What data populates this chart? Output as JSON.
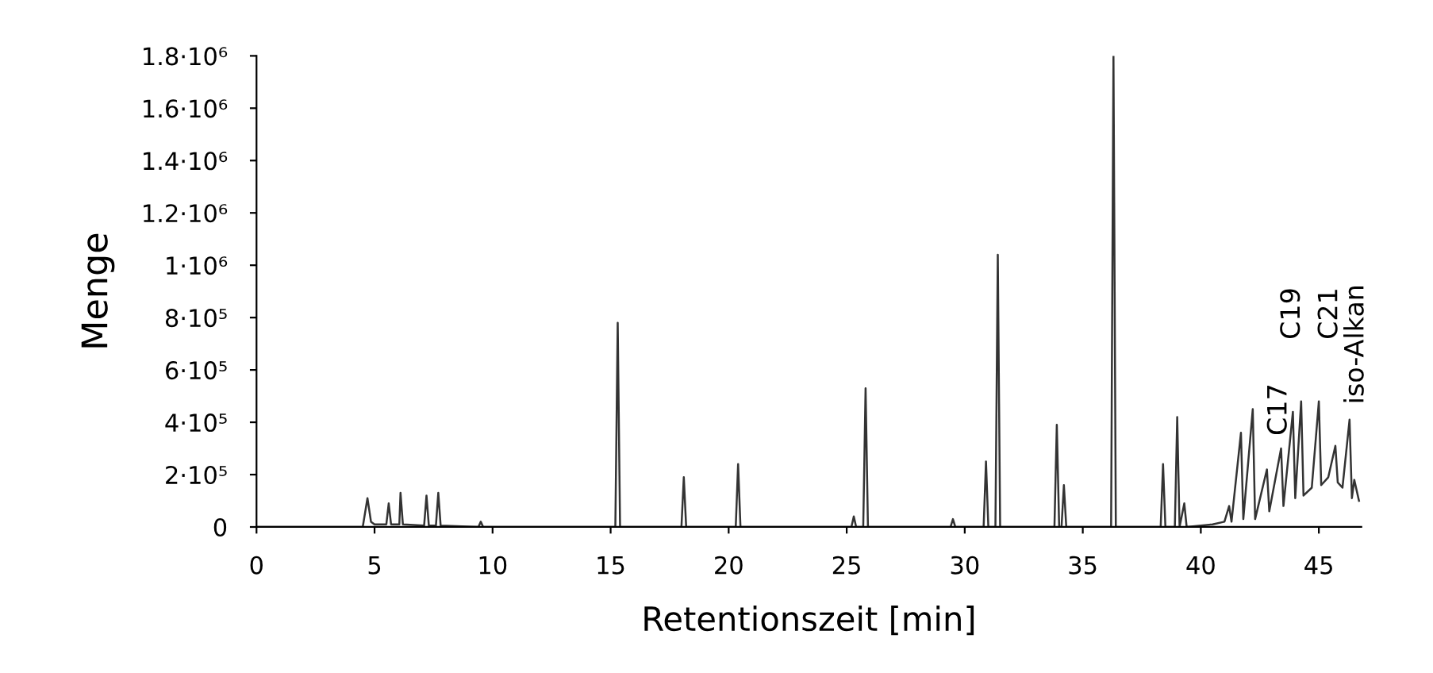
{
  "chart_data": {
    "type": "line",
    "xlabel": "Retentionszeit [min]",
    "ylabel": "Menge",
    "x": [
      0,
      4.5,
      4.7,
      4.85,
      5.0,
      5.5,
      5.6,
      5.7,
      6.05,
      6.1,
      6.2,
      7.1,
      7.2,
      7.3,
      7.6,
      7.7,
      7.8,
      9.4,
      9.5,
      9.6,
      15.2,
      15.3,
      15.4,
      18.0,
      18.1,
      18.2,
      20.3,
      20.4,
      20.5,
      25.2,
      25.3,
      25.4,
      25.7,
      25.8,
      25.9,
      29.4,
      29.5,
      29.6,
      30.8,
      30.9,
      31.0,
      31.3,
      31.4,
      31.5,
      33.8,
      33.9,
      34.0,
      34.1,
      34.2,
      34.3,
      36.2,
      36.3,
      36.4,
      38.3,
      38.4,
      38.5,
      38.9,
      39.0,
      39.1,
      39.3,
      39.4,
      40.5,
      41.0,
      41.2,
      41.3,
      41.7,
      41.8,
      42.2,
      42.3,
      42.8,
      42.9,
      43.4,
      43.5,
      43.9,
      44.0,
      44.25,
      44.35,
      44.7,
      45.0,
      45.1,
      45.4,
      45.7,
      45.8,
      46.0,
      46.3,
      46.4,
      46.5,
      46.7
    ],
    "series": [
      {
        "color": "#333333",
        "values": [
          0,
          0,
          110000,
          20000,
          10000,
          10000,
          90000,
          10000,
          10000,
          130000,
          10000,
          5000,
          120000,
          5000,
          5000,
          130000,
          5000,
          0,
          20000,
          0,
          0,
          780000,
          0,
          0,
          190000,
          0,
          0,
          240000,
          0,
          0,
          40000,
          0,
          0,
          530000,
          0,
          0,
          30000,
          0,
          0,
          250000,
          0,
          0,
          1040000,
          0,
          0,
          390000,
          0,
          0,
          160000,
          0,
          0,
          1800000,
          0,
          0,
          240000,
          0,
          0,
          420000,
          0,
          90000,
          0,
          10000,
          20000,
          80000,
          20000,
          360000,
          30000,
          450000,
          30000,
          220000,
          60000,
          300000,
          80000,
          440000,
          110000,
          480000,
          120000,
          150000,
          480000,
          160000,
          190000,
          310000,
          170000,
          150000,
          410000,
          110000,
          180000,
          100000
        ]
      }
    ],
    "xlim": [
      0,
      46.8
    ],
    "xticks": [
      0,
      5,
      10,
      15,
      20,
      25,
      30,
      35,
      40,
      45
    ],
    "ylim": [
      0,
      1800000
    ],
    "yticks": [
      {
        "value": 0,
        "label": "0"
      },
      {
        "value": 200000,
        "label": "2·10⁵"
      },
      {
        "value": 400000,
        "label": "4·10⁵"
      },
      {
        "value": 600000,
        "label": "6·10⁵"
      },
      {
        "value": 800000,
        "label": "8·10⁵"
      },
      {
        "value": 1000000,
        "label": "1·10⁶"
      },
      {
        "value": 1200000,
        "label": "1.2·10⁶"
      },
      {
        "value": 1400000,
        "label": "1.4·10⁶"
      },
      {
        "value": 1600000,
        "label": "1.6·10⁶"
      },
      {
        "value": 1800000,
        "label": "1.8·10⁶"
      }
    ],
    "annotations": [
      {
        "text": "C17",
        "x": 42.2,
        "y": 450000
      },
      {
        "text": "C19",
        "x": 44.25,
        "y": 480000
      },
      {
        "text": "C21",
        "x": 45.0,
        "y": 480000
      },
      {
        "text": "iso-Alkan",
        "x": 46.3,
        "y": 410000
      }
    ],
    "grid": false,
    "legend": false,
    "marker": "none",
    "line_style": "solid"
  }
}
